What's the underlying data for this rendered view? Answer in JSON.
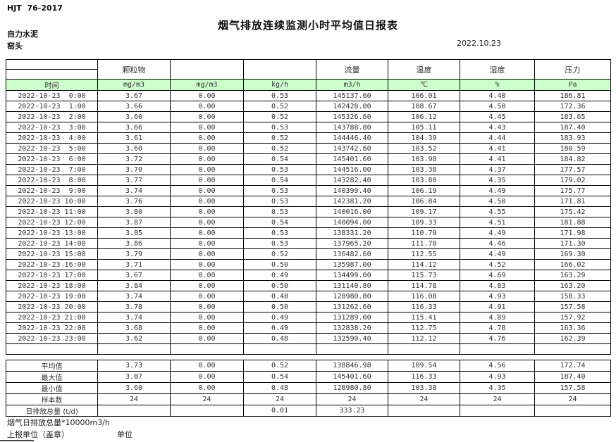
{
  "header": {
    "doc_code": "HJT  76-2017",
    "title": "烟气排放连续监测小时平均值日报表",
    "company": "自力水泥",
    "station": "窑头",
    "date": "2022.10.23"
  },
  "table": {
    "group_headers": [
      "",
      "颗粒物",
      "",
      "",
      "流量",
      "温度",
      "湿度",
      "压力"
    ],
    "time_header": "时间",
    "units": [
      "mg/m3",
      "mg/m3",
      "kg/h",
      "m3/h",
      "℃",
      "%",
      "Pa"
    ],
    "rows": [
      {
        "time": "2022-10-23  0:00",
        "values": [
          "3.67",
          "0.00",
          "0.53",
          "145137.60",
          "106.01",
          "4.40",
          "186.81"
        ]
      },
      {
        "time": "2022-10-23  1:00",
        "values": [
          "3.66",
          "0.00",
          "0.52",
          "142428.00",
          "108.67",
          "4.50",
          "172.36"
        ]
      },
      {
        "time": "2022-10-23  2:00",
        "values": [
          "3.60",
          "0.00",
          "0.52",
          "145326.60",
          "106.12",
          "4.45",
          "183.65"
        ]
      },
      {
        "time": "2022-10-23  3:00",
        "values": [
          "3.66",
          "0.00",
          "0.53",
          "143788.80",
          "105.11",
          "4.43",
          "187.40"
        ]
      },
      {
        "time": "2022-10-23  4:00",
        "values": [
          "3.61",
          "0.00",
          "0.52",
          "144446.40",
          "104.39",
          "4.44",
          "183.93"
        ]
      },
      {
        "time": "2022-10-23  5:00",
        "values": [
          "3.60",
          "0.00",
          "0.52",
          "143742.60",
          "103.52",
          "4.41",
          "180.59"
        ]
      },
      {
        "time": "2022-10-23  6:00",
        "values": [
          "3.72",
          "0.00",
          "0.54",
          "145401.60",
          "103.98",
          "4.41",
          "184.82"
        ]
      },
      {
        "time": "2022-10-23  7:00",
        "values": [
          "3.70",
          "0.00",
          "0.53",
          "144516.00",
          "103.38",
          "4.37",
          "177.57"
        ]
      },
      {
        "time": "2022-10-23  8:00",
        "values": [
          "3.77",
          "0.00",
          "0.54",
          "143282.40",
          "103.80",
          "4.35",
          "179.02"
        ]
      },
      {
        "time": "2022-10-23  9:00",
        "values": [
          "3.74",
          "0.00",
          "0.53",
          "140399.40",
          "106.19",
          "4.49",
          "175.77"
        ]
      },
      {
        "time": "2022-10-23 10:00",
        "values": [
          "3.76",
          "0.00",
          "0.53",
          "142381.20",
          "106.84",
          "4.50",
          "171.81"
        ]
      },
      {
        "time": "2022-10-23 11:00",
        "values": [
          "3.80",
          "0.00",
          "0.53",
          "140016.00",
          "109.17",
          "4.55",
          "175.42"
        ]
      },
      {
        "time": "2022-10-23 12:00",
        "values": [
          "3.87",
          "0.00",
          "0.54",
          "140094.00",
          "109.33",
          "4.51",
          "181.88"
        ]
      },
      {
        "time": "2022-10-23 13:00",
        "values": [
          "3.85",
          "0.00",
          "0.53",
          "138331.20",
          "110.79",
          "4.49",
          "171.98"
        ]
      },
      {
        "time": "2022-10-23 14:00",
        "values": [
          "3.86",
          "0.00",
          "0.53",
          "137965.20",
          "111.78",
          "4.46",
          "171.30"
        ]
      },
      {
        "time": "2022-10-23 15:00",
        "values": [
          "3.79",
          "0.00",
          "0.52",
          "136482.60",
          "112.55",
          "4.49",
          "169.30"
        ]
      },
      {
        "time": "2022-10-23 16:00",
        "values": [
          "3.71",
          "0.00",
          "0.50",
          "135987.00",
          "114.12",
          "4.52",
          "166.02"
        ]
      },
      {
        "time": "2022-10-23 17:00",
        "values": [
          "3.67",
          "0.00",
          "0.49",
          "134499.00",
          "115.73",
          "4.69",
          "163.29"
        ]
      },
      {
        "time": "2022-10-23 18:00",
        "values": [
          "3.84",
          "0.00",
          "0.50",
          "131140.80",
          "114.78",
          "4.83",
          "163.20"
        ]
      },
      {
        "time": "2022-10-23 19:00",
        "values": [
          "3.74",
          "0.00",
          "0.48",
          "128980.80",
          "116.08",
          "4.93",
          "158.33"
        ]
      },
      {
        "time": "2022-10-23 20:00",
        "values": [
          "3.78",
          "0.00",
          "0.50",
          "131262.60",
          "116.33",
          "4.91",
          "157.58"
        ]
      },
      {
        "time": "2022-10-23 21:00",
        "values": [
          "3.74",
          "0.00",
          "0.49",
          "131289.00",
          "115.41",
          "4.89",
          "157.92"
        ]
      },
      {
        "time": "2022-10-23 22:00",
        "values": [
          "3.68",
          "0.00",
          "0.49",
          "132838.20",
          "112.75",
          "4.78",
          "163.36"
        ]
      },
      {
        "time": "2022-10-23 23:00",
        "values": [
          "3.62",
          "0.00",
          "0.48",
          "132590.40",
          "112.12",
          "4.76",
          "162.39"
        ]
      }
    ],
    "summary_rows": [
      {
        "label": "平均值",
        "values": [
          "3.73",
          "0.00",
          "0.52",
          "138846.98",
          "109.54",
          "4.56",
          "172.74"
        ]
      },
      {
        "label": "最大值",
        "values": [
          "3.87",
          "0.00",
          "0.54",
          "145401.60",
          "116.33",
          "4.93",
          "187.40"
        ]
      },
      {
        "label": "最小值",
        "values": [
          "3.60",
          "0.00",
          "0.48",
          "128980.80",
          "103.38",
          "4.35",
          "157.58"
        ]
      },
      {
        "label": "样本数",
        "values": [
          "24",
          "24",
          "24",
          "24",
          "24",
          "24",
          "24"
        ]
      },
      {
        "label": "日排放总量 (t/d)",
        "values": [
          "",
          "",
          "0.01",
          "333.23",
          "",
          "",
          ""
        ]
      }
    ]
  },
  "footer": {
    "note": "烟气日排放总量*10000m3/h",
    "report_unit_label": "上报单位（盖章）",
    "unit_label": "单位"
  },
  "colors": {
    "unit_row_bg": "#ccffcc",
    "border": "#000000"
  }
}
